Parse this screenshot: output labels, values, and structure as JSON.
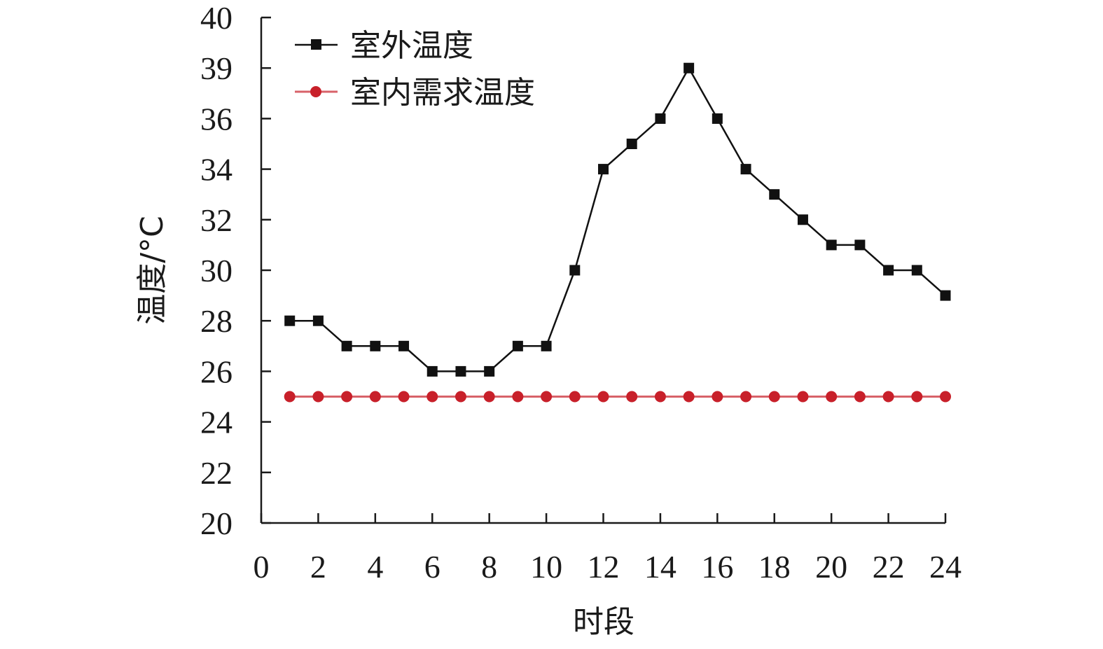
{
  "chart_data": {
    "type": "line",
    "title": "",
    "xlabel": "时段",
    "ylabel": "温度/°C",
    "xlim": [
      0,
      24
    ],
    "ylim": [
      20,
      40
    ],
    "x_ticks": [
      "0",
      "2",
      "4",
      "6",
      "8",
      "10",
      "12",
      "14",
      "16",
      "18",
      "20",
      "22",
      "24"
    ],
    "y_ticks": [
      "20",
      "22",
      "24",
      "26",
      "28",
      "30",
      "32",
      "34",
      "36",
      "39",
      "40"
    ],
    "x": [
      1,
      2,
      3,
      4,
      5,
      6,
      7,
      8,
      9,
      10,
      11,
      12,
      13,
      14,
      15,
      16,
      17,
      18,
      19,
      20,
      21,
      22,
      23,
      24
    ],
    "series": [
      {
        "name": "室外温度",
        "marker": "square",
        "color": "#111111",
        "values": [
          28,
          28,
          27,
          27,
          27,
          26,
          26,
          26,
          27,
          27,
          30,
          34,
          35,
          36,
          39,
          36,
          34,
          33,
          32,
          31,
          31,
          30,
          30,
          29
        ]
      },
      {
        "name": "室内需求温度",
        "marker": "circle",
        "color": "#c8202a",
        "values": [
          25,
          25,
          25,
          25,
          25,
          25,
          25,
          25,
          25,
          25,
          25,
          25,
          25,
          25,
          25,
          25,
          25,
          25,
          25,
          25,
          25,
          25,
          25,
          25
        ]
      }
    ],
    "grid": false,
    "legend_position": "top-left"
  }
}
